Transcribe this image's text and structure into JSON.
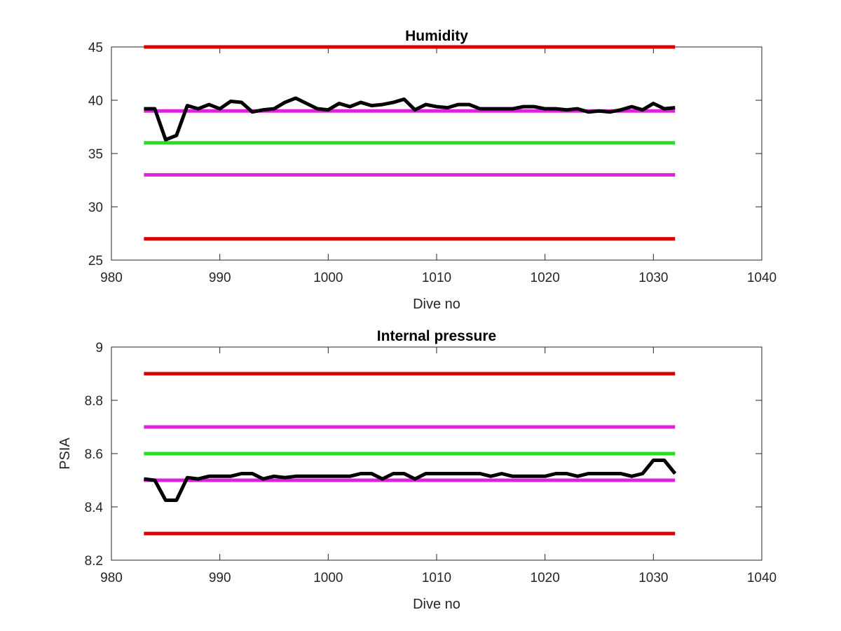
{
  "chart_data": [
    {
      "type": "line",
      "title": "Humidity",
      "xlabel": "Dive no",
      "ylabel": "",
      "xlim": [
        980,
        1040
      ],
      "ylim": [
        25,
        45
      ],
      "xticks": [
        "980",
        "990",
        "1000",
        "1010",
        "1020",
        "1030",
        "1040"
      ],
      "yticks": [
        "25",
        "30",
        "35",
        "40",
        "45"
      ],
      "grid": false,
      "thresholds": [
        {
          "y": 45,
          "x": [
            983,
            1032
          ],
          "color": "#d40000"
        },
        {
          "y": 39,
          "x": [
            983,
            1032
          ],
          "color": "#e020e0"
        },
        {
          "y": 36,
          "x": [
            983,
            1032
          ],
          "color": "#22e022"
        },
        {
          "y": 33,
          "x": [
            983,
            1032
          ],
          "color": "#e020e0"
        },
        {
          "y": 27,
          "x": [
            983,
            1032
          ],
          "color": "#d40000"
        }
      ],
      "series": [
        {
          "color": "#000000",
          "x": [
            983,
            984,
            985,
            986,
            987,
            988,
            989,
            990,
            991,
            992,
            993,
            994,
            995,
            996,
            997,
            998,
            999,
            1000,
            1001,
            1002,
            1003,
            1004,
            1005,
            1006,
            1007,
            1008,
            1009,
            1010,
            1011,
            1012,
            1013,
            1014,
            1015,
            1016,
            1017,
            1018,
            1019,
            1020,
            1021,
            1022,
            1023,
            1024,
            1025,
            1026,
            1027,
            1028,
            1029,
            1030,
            1031,
            1032
          ],
          "y": [
            39.2,
            39.2,
            36.3,
            36.7,
            39.5,
            39.2,
            39.6,
            39.2,
            39.9,
            39.8,
            38.9,
            39.1,
            39.2,
            39.8,
            40.2,
            39.7,
            39.2,
            39.1,
            39.7,
            39.4,
            39.8,
            39.5,
            39.6,
            39.8,
            40.1,
            39.1,
            39.6,
            39.4,
            39.3,
            39.6,
            39.6,
            39.2,
            39.2,
            39.2,
            39.2,
            39.4,
            39.4,
            39.2,
            39.2,
            39.1,
            39.2,
            38.9,
            39.0,
            38.9,
            39.1,
            39.4,
            39.1,
            39.7,
            39.2,
            39.3
          ]
        }
      ]
    },
    {
      "type": "line",
      "title": "Internal pressure",
      "xlabel": "Dive no",
      "ylabel": "PSIA",
      "xlim": [
        980,
        1040
      ],
      "ylim": [
        8.2,
        9
      ],
      "xticks": [
        "980",
        "990",
        "1000",
        "1010",
        "1020",
        "1030",
        "1040"
      ],
      "yticks": [
        "8.2",
        "8.4",
        "8.6",
        "8.8",
        "9"
      ],
      "grid": false,
      "thresholds": [
        {
          "y": 8.9,
          "x": [
            983,
            1032
          ],
          "color": "#d40000"
        },
        {
          "y": 8.7,
          "x": [
            983,
            1032
          ],
          "color": "#e020e0"
        },
        {
          "y": 8.6,
          "x": [
            983,
            1032
          ],
          "color": "#22e022"
        },
        {
          "y": 8.5,
          "x": [
            983,
            1032
          ],
          "color": "#e020e0"
        },
        {
          "y": 8.3,
          "x": [
            983,
            1032
          ],
          "color": "#d40000"
        }
      ],
      "series": [
        {
          "color": "#000000",
          "x": [
            983,
            984,
            985,
            986,
            987,
            988,
            989,
            990,
            991,
            992,
            993,
            994,
            995,
            996,
            997,
            998,
            999,
            1000,
            1001,
            1002,
            1003,
            1004,
            1005,
            1006,
            1007,
            1008,
            1009,
            1010,
            1011,
            1012,
            1013,
            1014,
            1015,
            1016,
            1017,
            1018,
            1019,
            1020,
            1021,
            1022,
            1023,
            1024,
            1025,
            1026,
            1027,
            1028,
            1029,
            1030,
            1031,
            1032
          ],
          "y": [
            8.505,
            8.5,
            8.425,
            8.425,
            8.51,
            8.505,
            8.515,
            8.515,
            8.515,
            8.525,
            8.525,
            8.505,
            8.515,
            8.51,
            8.515,
            8.515,
            8.515,
            8.515,
            8.515,
            8.515,
            8.525,
            8.525,
            8.505,
            8.525,
            8.525,
            8.505,
            8.525,
            8.525,
            8.525,
            8.525,
            8.525,
            8.525,
            8.515,
            8.525,
            8.515,
            8.515,
            8.515,
            8.515,
            8.525,
            8.525,
            8.515,
            8.525,
            8.525,
            8.525,
            8.525,
            8.515,
            8.525,
            8.575,
            8.575,
            8.525
          ]
        }
      ]
    }
  ]
}
